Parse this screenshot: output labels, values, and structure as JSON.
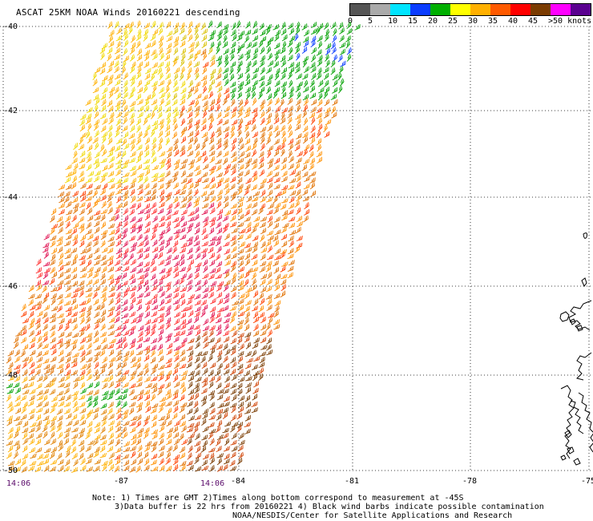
{
  "title": "ASCAT 25KM NOAA Winds 20160221 descending",
  "legend": {
    "labels": [
      "0",
      "5",
      "10",
      "15",
      "20",
      "25",
      "30",
      "35",
      "40",
      "45",
      ">50 knots"
    ],
    "colors": [
      "#555555",
      "#aaaaaa",
      "#00e5ff",
      "#0a3cff",
      "#00b000",
      "#ffff00",
      "#ffb000",
      "#ff5a00",
      "#ff0000",
      "#7a3b00",
      "#ff00ff",
      "#5a0090"
    ]
  },
  "map": {
    "lat_labels": [
      "-40",
      "-42",
      "-44",
      "-46",
      "-48",
      "-50"
    ],
    "lon_labels": [
      "-87",
      "-84",
      "-81",
      "-78",
      "-75"
    ],
    "time_labels": [
      "14:06",
      "14:06"
    ]
  },
  "notes": {
    "line1": "Note: 1) Times are GMT 2)Times along bottom correspond to measurement at -45S",
    "line2": "3)Data buffer is 22 hrs from 20160221 4) Black wind barbs indicate possible contamination",
    "line3": "NOAA/NESDIS/Center for Satellite Applications and Research"
  }
}
